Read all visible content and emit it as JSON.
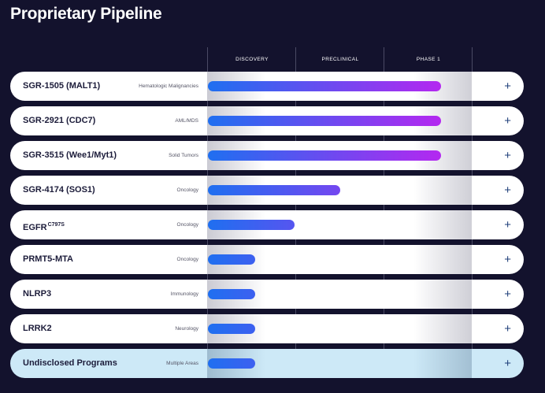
{
  "title": "Proprietary Pipeline",
  "phases": [
    "DISCOVERY",
    "PRECLINICAL",
    "PHASE 1"
  ],
  "colors": {
    "background": "#13122d",
    "bar_start": "#1f6ff0",
    "bar_end": "#b428f0",
    "row": "#ffffff",
    "row_highlight": "#cde9f7",
    "plus": "#1f3f7a"
  },
  "chart_data": {
    "type": "bar",
    "orientation": "horizontal",
    "stages": [
      "DISCOVERY",
      "PRECLINICAL",
      "PHASE 1"
    ],
    "programs": [
      {
        "name": "SGR-1505 (MALT1)",
        "sup": "",
        "indication": "Hematologic Malignancies",
        "progress": 2.64,
        "highlight": false
      },
      {
        "name": "SGR-2921 (CDC7)",
        "sup": "",
        "indication": "AML/MDS",
        "progress": 2.64,
        "highlight": false
      },
      {
        "name": "SGR-3515 (Wee1/Myt1)",
        "sup": "",
        "indication": "Solid Tumors",
        "progress": 2.64,
        "highlight": false
      },
      {
        "name": "SGR-4174 (SOS1)",
        "sup": "",
        "indication": "Oncology",
        "progress": 1.5,
        "highlight": false
      },
      {
        "name": "EGFR",
        "sup": "C797S",
        "indication": "Oncology",
        "progress": 0.98,
        "highlight": false
      },
      {
        "name": "PRMT5-MTA",
        "sup": "",
        "indication": "Oncology",
        "progress": 0.54,
        "highlight": false
      },
      {
        "name": "NLRP3",
        "sup": "",
        "indication": "Immunology",
        "progress": 0.54,
        "highlight": false
      },
      {
        "name": "LRRK2",
        "sup": "",
        "indication": "Neurology",
        "progress": 0.54,
        "highlight": false
      },
      {
        "name": "Undisclosed Programs",
        "sup": "",
        "indication": "Multiple Areas",
        "progress": 0.54,
        "highlight": true
      }
    ]
  }
}
